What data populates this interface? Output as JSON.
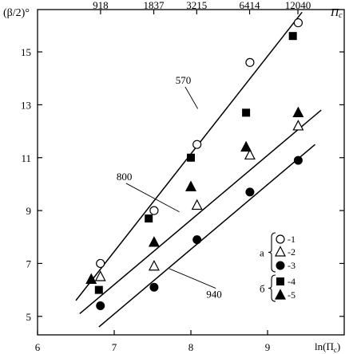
{
  "chart_data": {
    "type": "scatter",
    "xlabel": "ln(Π",
    "xlabel_sub": "c",
    "xlabel_close": ")",
    "ylabel": "(β/2)°",
    "top_axis_label": "Π",
    "top_axis_label_sub": "c",
    "xlim": [
      6,
      10
    ],
    "ylim": [
      4.3,
      16.6
    ],
    "x_ticks": [
      6,
      7,
      8,
      9
    ],
    "y_ticks": [
      5,
      7,
      9,
      11,
      13,
      15
    ],
    "top_ticks": [
      {
        "label": "918",
        "x": 6.822
      },
      {
        "label": "1837",
        "x": 7.516
      },
      {
        "label": "3215",
        "x": 8.076
      },
      {
        "label": "6414",
        "x": 8.766
      },
      {
        "label": "12040",
        "x": 9.396
      }
    ],
    "grid": false,
    "legend": {
      "placement": "bottom-right",
      "groups": [
        {
          "label": "а",
          "entries": [
            "-1",
            "-2",
            "-3"
          ]
        },
        {
          "label": "б",
          "entries": [
            "-4",
            "-5"
          ]
        }
      ]
    },
    "series": [
      {
        "marker": "circle-open",
        "legend_label": "-1",
        "points": [
          [
            6.82,
            7.0
          ],
          [
            7.52,
            9.0
          ],
          [
            8.08,
            11.5
          ],
          [
            8.77,
            14.6
          ],
          [
            9.4,
            16.1
          ]
        ]
      },
      {
        "marker": "triangle-open",
        "legend_label": "-2",
        "points": [
          [
            6.82,
            6.5
          ],
          [
            7.52,
            6.9
          ],
          [
            8.08,
            9.2
          ],
          [
            8.77,
            11.1
          ],
          [
            9.4,
            12.2
          ]
        ]
      },
      {
        "marker": "circle-filled",
        "legend_label": "-3",
        "points": [
          [
            6.82,
            5.4
          ],
          [
            7.52,
            6.1
          ],
          [
            8.08,
            7.9
          ],
          [
            8.77,
            9.7
          ],
          [
            9.4,
            10.9
          ]
        ]
      },
      {
        "marker": "square-filled",
        "legend_label": "-4",
        "points": [
          [
            6.8,
            6.0
          ],
          [
            7.45,
            8.7
          ],
          [
            8.0,
            11.0
          ],
          [
            8.72,
            12.7
          ],
          [
            9.33,
            15.6
          ]
        ]
      },
      {
        "marker": "triangle-filled",
        "legend_label": "-5",
        "points": [
          [
            6.7,
            6.4
          ],
          [
            7.52,
            7.8
          ],
          [
            8.0,
            9.9
          ],
          [
            8.72,
            11.4
          ],
          [
            9.4,
            12.7
          ]
        ]
      }
    ],
    "fit_lines": [
      {
        "label": "570",
        "from": [
          6.5,
          5.6
        ],
        "to": [
          9.45,
          16.5
        ]
      },
      {
        "label": "800",
        "from": [
          6.55,
          5.1
        ],
        "to": [
          9.7,
          12.8
        ]
      },
      {
        "label": "940",
        "from": [
          6.8,
          4.6
        ],
        "to": [
          9.62,
          11.5
        ]
      }
    ],
    "line_labels": [
      {
        "text": "570",
        "at": [
          7.8,
          13.8
        ],
        "pointer_to": [
          8.09,
          12.85
        ]
      },
      {
        "text": "800",
        "at": [
          7.03,
          10.15
        ],
        "pointer_to": [
          7.85,
          8.95
        ]
      },
      {
        "text": "940",
        "at": [
          8.2,
          5.7
        ],
        "pointer_to": [
          7.72,
          6.8
        ]
      }
    ]
  }
}
